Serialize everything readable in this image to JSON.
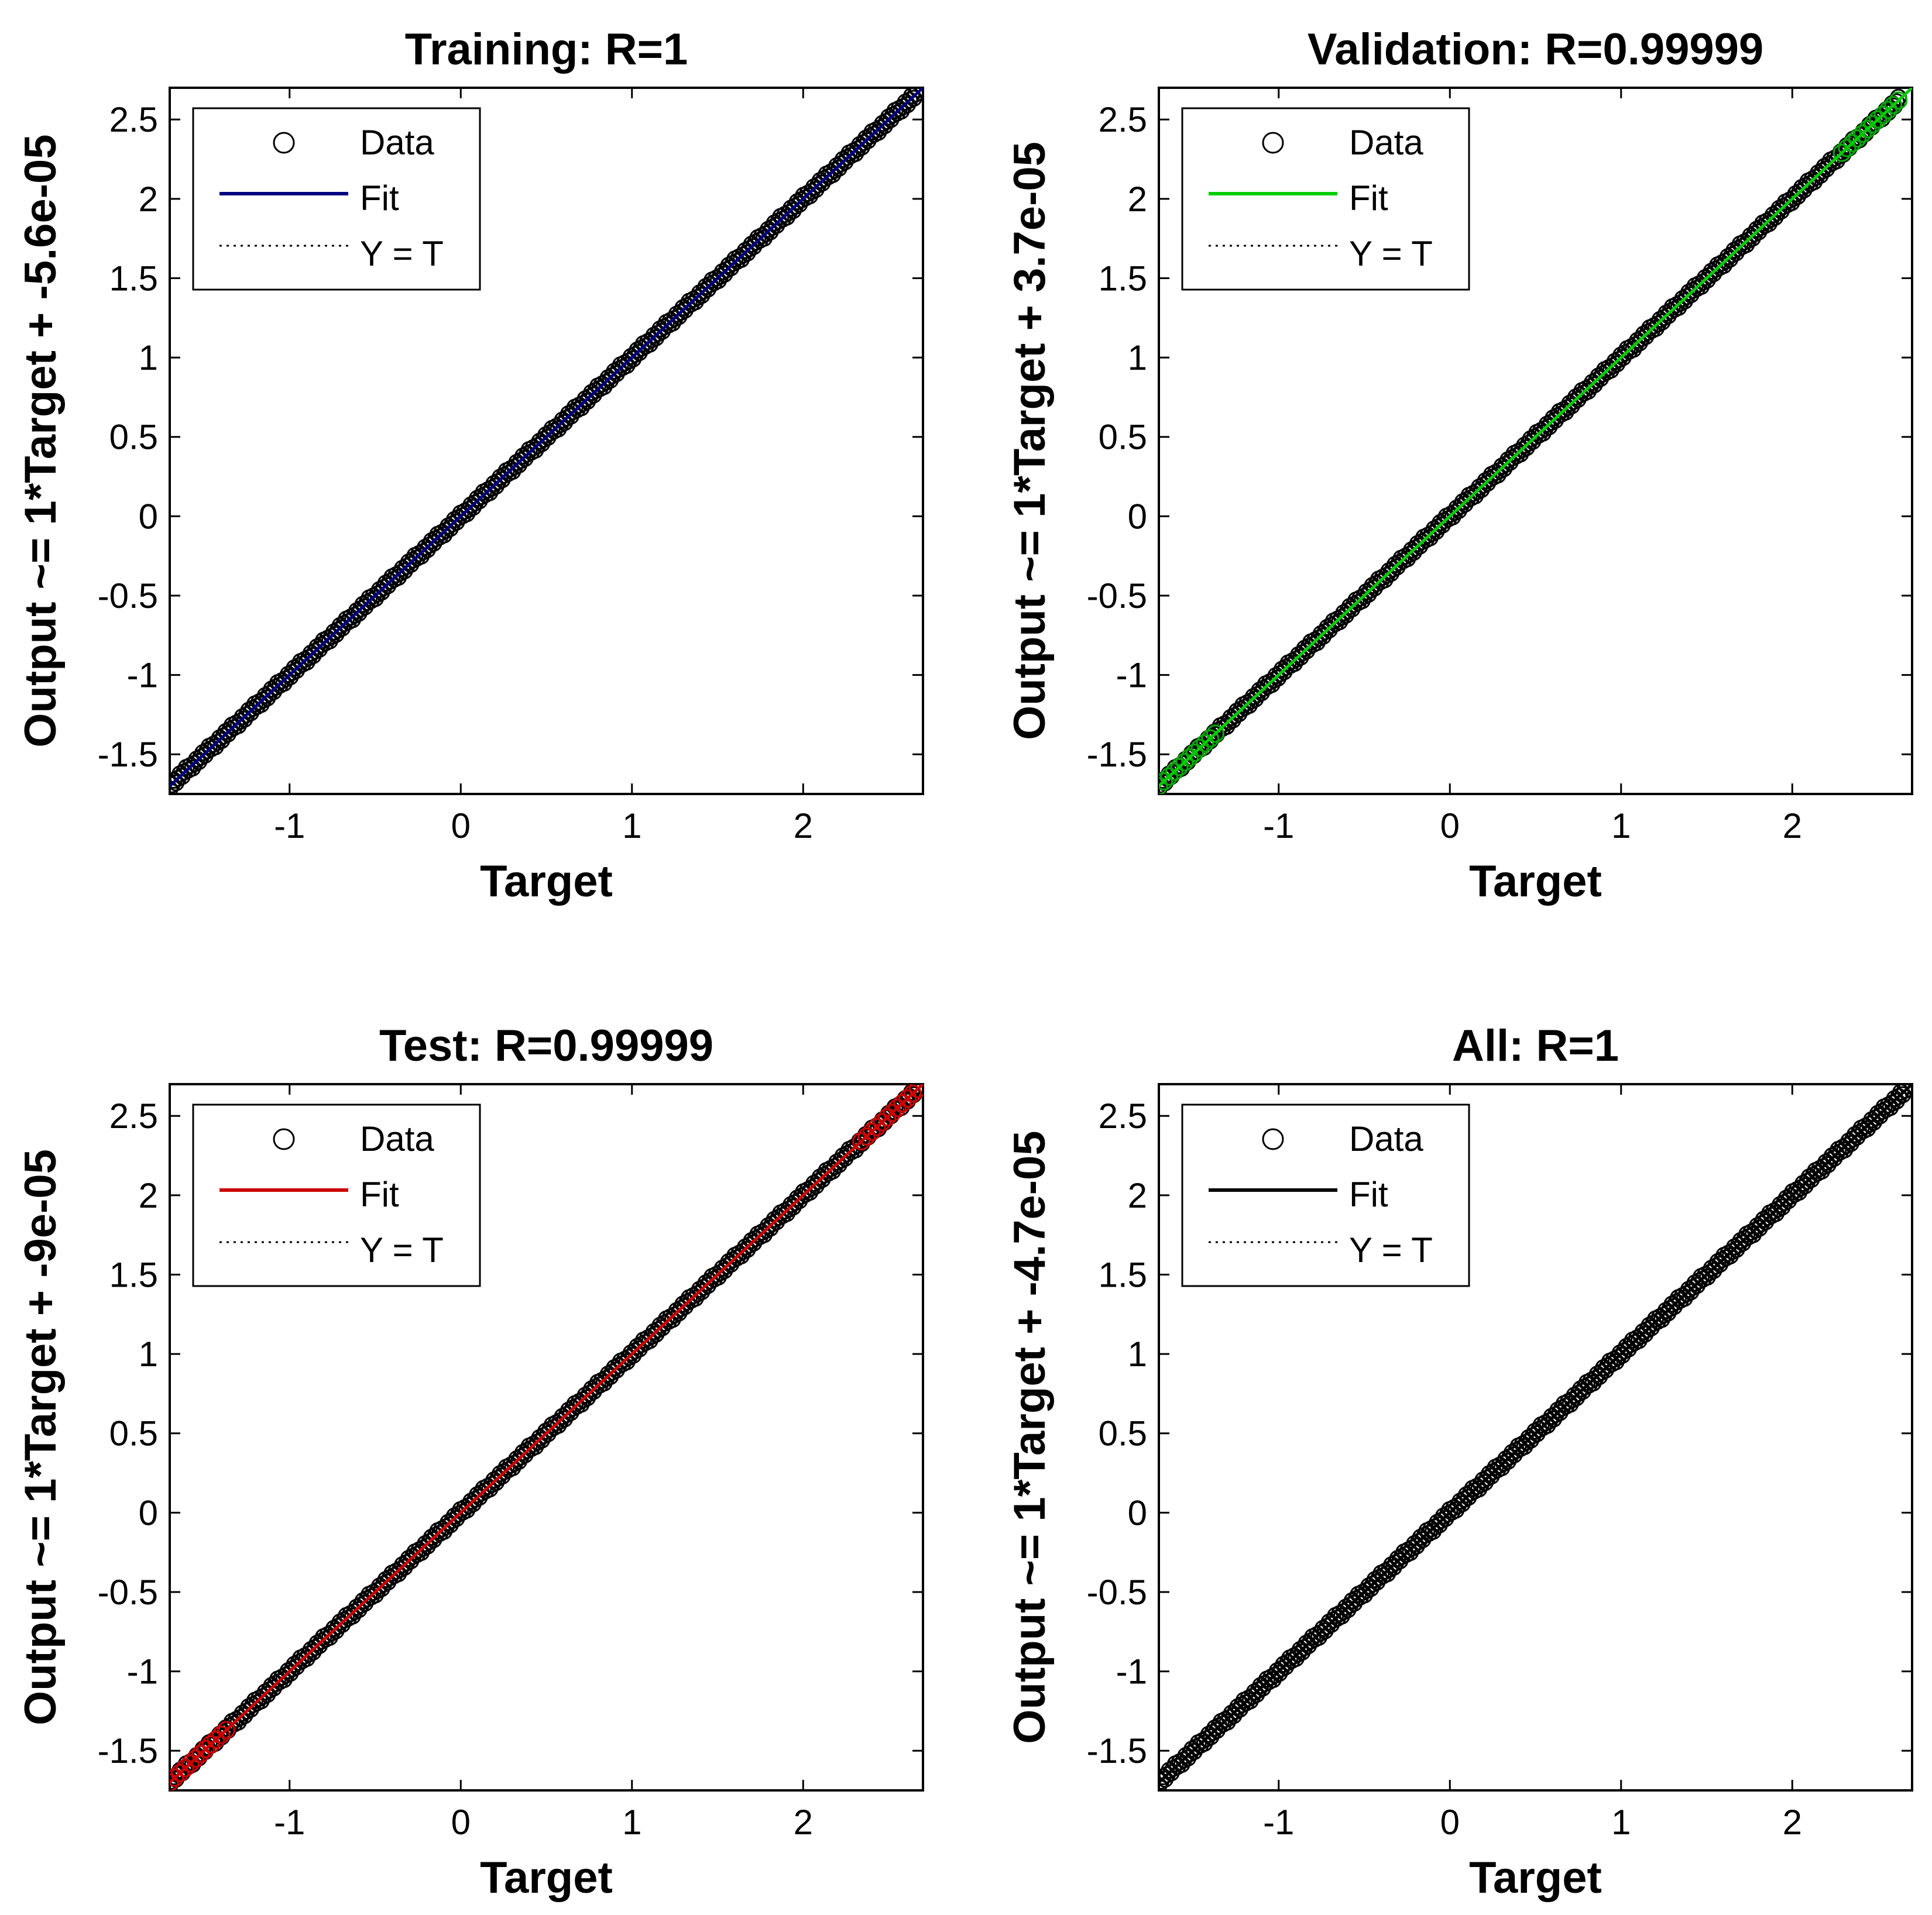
{
  "chart_data": [
    {
      "type": "scatter",
      "title": "Training: R=1",
      "xlabel": "Target",
      "ylabel": "Output ~= 1*Target + -5.6e-05",
      "xlim": [
        -1.7,
        2.7
      ],
      "ylim": [
        -1.75,
        2.7
      ],
      "xticks": [
        -1,
        0,
        1,
        2
      ],
      "yticks": [
        -1.5,
        -1,
        -0.5,
        0,
        0.5,
        1,
        1.5,
        2,
        2.5
      ],
      "fit_color": "#00007f",
      "marker_color": "#000000",
      "highlight_color": "#000000",
      "legend": {
        "position": "top-left",
        "entries": [
          "Data",
          "Fit",
          "Y = T"
        ]
      },
      "fit": {
        "slope": 1,
        "intercept": -5.6e-05
      },
      "data_range": [
        -1.7,
        2.67
      ]
    },
    {
      "type": "scatter",
      "title": "Validation: R=0.99999",
      "xlabel": "Target",
      "ylabel": "Output ~= 1*Target + 3.7e-05",
      "xlim": [
        -1.7,
        2.7
      ],
      "ylim": [
        -1.75,
        2.7
      ],
      "xticks": [
        -1,
        0,
        1,
        2
      ],
      "yticks": [
        -1.5,
        -1,
        -0.5,
        0,
        0.5,
        1,
        1.5,
        2,
        2.5
      ],
      "fit_color": "#00cc00",
      "marker_color": "#000000",
      "highlight_color": "#00aa00",
      "legend": {
        "position": "top-left",
        "entries": [
          "Data",
          "Fit",
          "Y = T"
        ]
      },
      "fit": {
        "slope": 1,
        "intercept": 3.7e-05
      },
      "data_range": [
        -1.7,
        2.62
      ]
    },
    {
      "type": "scatter",
      "title": "Test: R=0.99999",
      "xlabel": "Target",
      "ylabel": "Output ~= 1*Target + -9e-05",
      "xlim": [
        -1.7,
        2.7
      ],
      "ylim": [
        -1.75,
        2.7
      ],
      "xticks": [
        -1,
        0,
        1,
        2
      ],
      "yticks": [
        -1.5,
        -1,
        -0.5,
        0,
        0.5,
        1,
        1.5,
        2,
        2.5
      ],
      "fit_color": "#cc0000",
      "marker_color": "#000000",
      "highlight_color": "#cc0000",
      "legend": {
        "position": "top-left",
        "entries": [
          "Data",
          "Fit",
          "Y = T"
        ]
      },
      "fit": {
        "slope": 1,
        "intercept": -9e-05
      },
      "data_range": [
        -1.7,
        2.67
      ]
    },
    {
      "type": "scatter",
      "title": "All: R=1",
      "xlabel": "Target",
      "ylabel": "Output ~= 1*Target + -4.7e-05",
      "xlim": [
        -1.7,
        2.7
      ],
      "ylim": [
        -1.75,
        2.7
      ],
      "xticks": [
        -1,
        0,
        1,
        2
      ],
      "yticks": [
        -1.5,
        -1,
        -0.5,
        0,
        0.5,
        1,
        1.5,
        2,
        2.5
      ],
      "fit_color": "#000000",
      "marker_color": "#000000",
      "highlight_color": "#000000",
      "legend": {
        "position": "top-left",
        "entries": [
          "Data",
          "Fit",
          "Y = T"
        ]
      },
      "fit": {
        "slope": 1,
        "intercept": -4.7e-05
      },
      "data_range": [
        -1.7,
        2.67
      ]
    }
  ]
}
